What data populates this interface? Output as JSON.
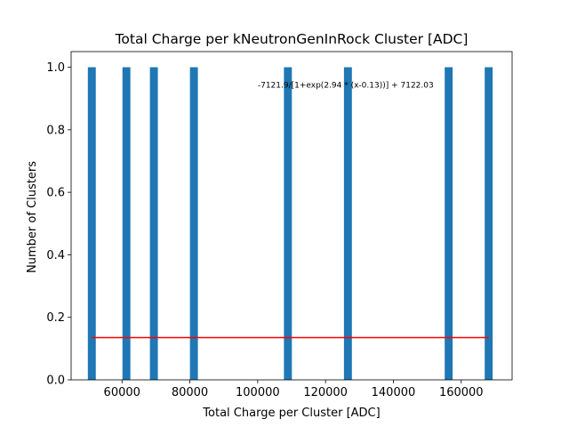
{
  "chart_data": {
    "type": "bar",
    "title": "Total Charge per kNeutronGenInRock Cluster [ADC]",
    "xlabel": "Total Charge per Cluster [ADC]",
    "ylabel": "Number of Clusters",
    "xlim": [
      45000,
      175000
    ],
    "ylim": [
      0,
      1.05
    ],
    "x_ticks": [
      60000,
      80000,
      100000,
      120000,
      140000,
      160000
    ],
    "x_tick_labels": [
      "60000",
      "80000",
      "100000",
      "120000",
      "140000",
      "160000"
    ],
    "y_ticks": [
      0.0,
      0.2,
      0.4,
      0.6,
      0.8,
      1.0
    ],
    "y_tick_labels": [
      "0.0",
      "0.2",
      "0.4",
      "0.6",
      "0.8",
      "1.0"
    ],
    "bar_color": "#1f77b4",
    "bin_width": 2340,
    "bars": [
      {
        "x": 51100,
        "value": 1
      },
      {
        "x": 61300,
        "value": 1
      },
      {
        "x": 69400,
        "value": 1
      },
      {
        "x": 81200,
        "value": 1
      },
      {
        "x": 108900,
        "value": 1
      },
      {
        "x": 126600,
        "value": 1
      },
      {
        "x": 156300,
        "value": 1
      },
      {
        "x": 168100,
        "value": 1
      }
    ],
    "fit_line": {
      "color": "#ff0000",
      "x": [
        51100,
        168100
      ],
      "y": [
        0.135,
        0.135
      ]
    },
    "annotation": {
      "text": "-7121.9/[1+exp(2.94 * (x-0.13))] + 7122.03",
      "x": 100000,
      "y": 0.935
    },
    "grid": false,
    "legend": "none"
  }
}
